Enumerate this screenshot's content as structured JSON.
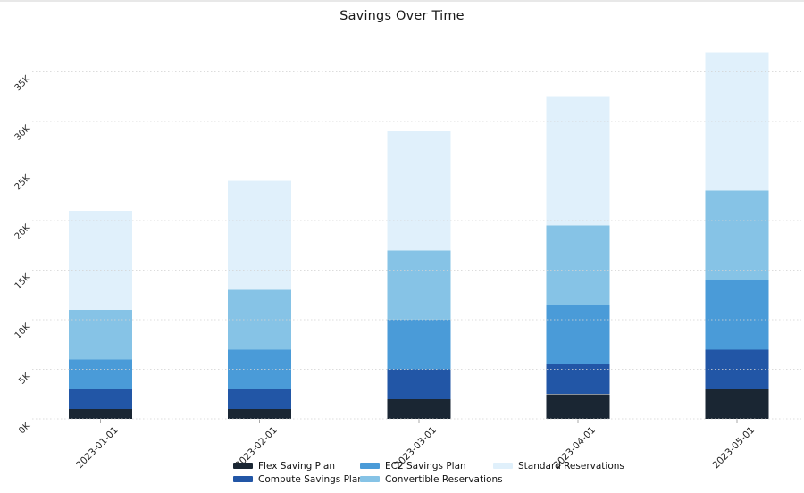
{
  "title": "Savings Over Time",
  "chart_data": {
    "type": "bar",
    "stacked": true,
    "title": "Savings Over Time",
    "xlabel": "",
    "ylabel": "",
    "categories": [
      "2023-01-01",
      "2023-02-01",
      "2023-03-01",
      "2023-04-01",
      "2023-05-01"
    ],
    "series": [
      {
        "name": "Flex Saving Plan",
        "color": "#1a2633",
        "values": [
          1000,
          1000,
          2000,
          2500,
          3000
        ]
      },
      {
        "name": "Compute Savings Plan",
        "color": "#2256a6",
        "values": [
          2000,
          2000,
          3000,
          3000,
          4000
        ]
      },
      {
        "name": "EC2 Savings Plan",
        "color": "#4a9bd8",
        "values": [
          3000,
          4000,
          5000,
          6000,
          7000
        ]
      },
      {
        "name": "Convertible Reservations",
        "color": "#86c3e6",
        "values": [
          5000,
          6000,
          7000,
          8000,
          9000
        ]
      },
      {
        "name": "Standard Reservations",
        "color": "#e0f0fb",
        "values": [
          10000,
          11000,
          12000,
          13000,
          14000
        ]
      }
    ],
    "totals": [
      21000,
      24000,
      29000,
      32500,
      37000
    ],
    "ytick_labels": [
      "0K",
      "5K",
      "10K",
      "15K",
      "20K",
      "25K",
      "30K",
      "35K"
    ],
    "ytick_values": [
      0,
      5000,
      10000,
      15000,
      20000,
      25000,
      30000,
      35000
    ],
    "ylim": [
      0,
      37000
    ],
    "grid": true,
    "tick_rotation_deg": 45,
    "legend_position": "bottom"
  }
}
